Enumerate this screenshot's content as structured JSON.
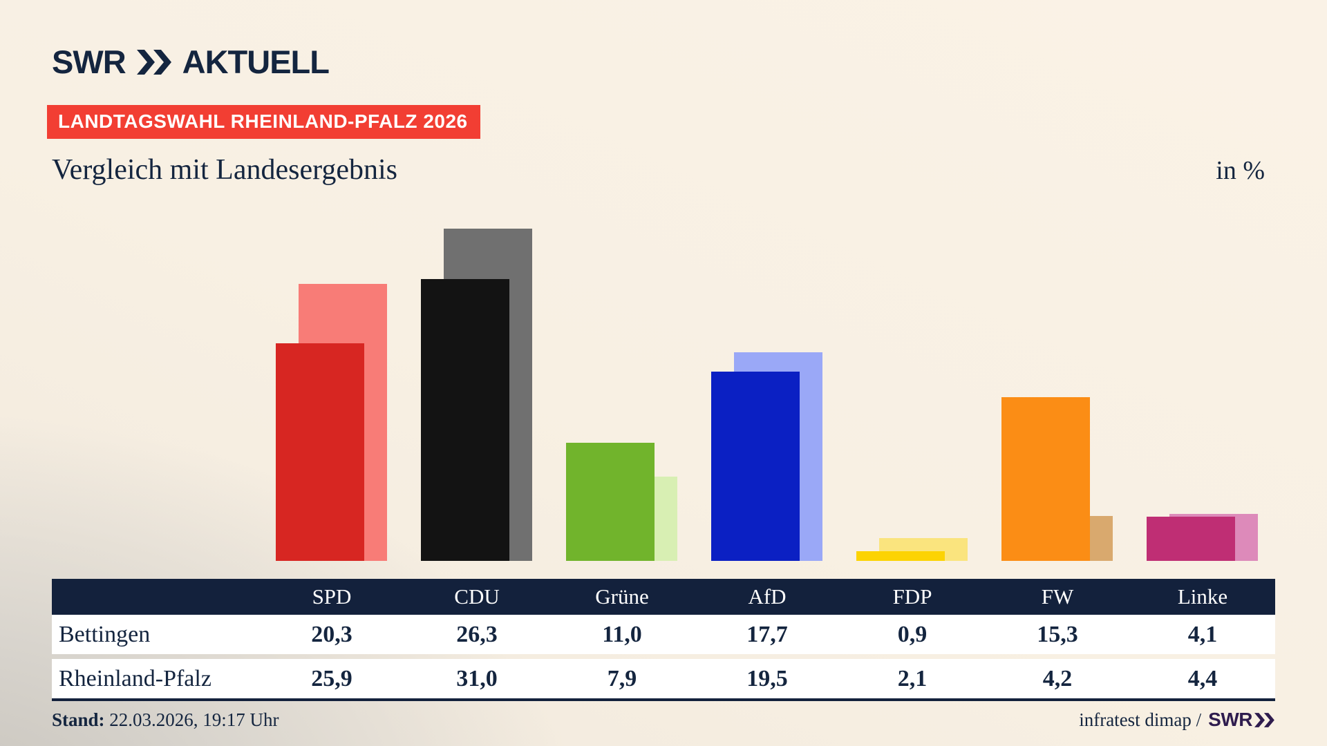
{
  "header": {
    "logo_brand": "SWR",
    "logo_suffix": "AKTUELL",
    "badge": "LANDTAGSWAHL RHEINLAND-PFALZ 2026",
    "title": "Vergleich mit Landesergebnis",
    "unit_label": "in %"
  },
  "chart_data": {
    "type": "bar",
    "variant": "overlapping-pairs (foreground = Bettingen, lighter offset background = Rheinland-Pfalz)",
    "title": "Vergleich mit Landesergebnis",
    "unit": "in %",
    "categories": [
      "SPD",
      "CDU",
      "Grüne",
      "AfD",
      "FDP",
      "FW",
      "Linke"
    ],
    "series": [
      {
        "name": "Bettingen",
        "values": [
          20.3,
          26.3,
          11.0,
          17.7,
          0.9,
          15.3,
          4.1
        ]
      },
      {
        "name": "Rheinland-Pfalz",
        "values": [
          25.9,
          31.0,
          7.9,
          19.5,
          2.1,
          4.2,
          4.4
        ]
      }
    ],
    "colors_foreground": [
      "#d72622",
      "#131313",
      "#71b42c",
      "#0b20c3",
      "#fcd303",
      "#fb8d15",
      "#bf2e74"
    ],
    "colors_background": [
      "#f87c77",
      "#707070",
      "#d8efb3",
      "#9aa8f7",
      "#fae47e",
      "#d9a96e",
      "#dd8aba"
    ],
    "xlabel": "",
    "ylabel": "",
    "ylim": [
      0,
      35
    ],
    "grid": false,
    "legend_position": "table-rows-below"
  },
  "table": {
    "columns": [
      "SPD",
      "CDU",
      "Grüne",
      "AfD",
      "FDP",
      "FW",
      "Linke"
    ],
    "rows": [
      {
        "label": "Bettingen",
        "values": [
          "20,3",
          "26,3",
          "11,0",
          "17,7",
          "0,9",
          "15,3",
          "4,1"
        ]
      },
      {
        "label": "Rheinland-Pfalz",
        "values": [
          "25,9",
          "31,0",
          "7,9",
          "19,5",
          "2,1",
          "4,2",
          "4,4"
        ]
      }
    ]
  },
  "footer": {
    "stand_label": "Stand:",
    "stand_value": "22.03.2026, 19:17 Uhr",
    "source_text": "infratest dimap /",
    "source_brand": "SWR"
  },
  "colors": {
    "page_background": "#f8f0e3",
    "page_background_shade": "#c6c2bb",
    "text_navy": "#14253f",
    "badge_red": "#f23e33",
    "table_header_navy": "#13213c",
    "row_white": "#ffffff",
    "brand_purple": "#2f1c4e"
  }
}
